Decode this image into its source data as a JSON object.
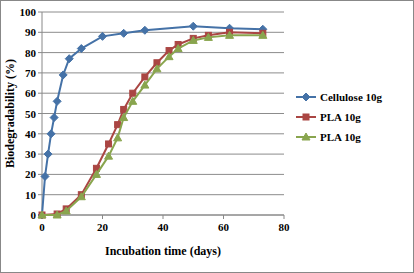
{
  "chart_data": {
    "type": "line",
    "x_label": "Incubation time (days)",
    "y_label": "Biodegradability (%)",
    "xlim": [
      0,
      80
    ],
    "xticks": [
      0,
      20,
      40,
      60,
      80
    ],
    "ylim": [
      0,
      100
    ],
    "yticks": [
      0,
      10,
      20,
      30,
      40,
      50,
      60,
      70,
      80,
      90,
      100
    ],
    "grid": true,
    "legend": "right",
    "series": [
      {
        "name": "Cellulose 10g",
        "color": "#4572a7",
        "marker": "diamond",
        "x": [
          0,
          1,
          2,
          3,
          4,
          5,
          7,
          9,
          13,
          20,
          27,
          34,
          50,
          62,
          73
        ],
        "values": [
          0,
          19,
          30,
          40,
          48,
          56,
          69,
          77,
          82,
          88,
          89.5,
          91,
          93,
          92,
          91.5
        ]
      },
      {
        "name": "PLA 10g",
        "color": "#aa4643",
        "marker": "square",
        "x": [
          0,
          5,
          8,
          13,
          18,
          22,
          25,
          27,
          30,
          34,
          38,
          42,
          45,
          50,
          55,
          62,
          73
        ],
        "values": [
          0,
          0.5,
          3,
          10,
          23,
          35,
          44.5,
          52,
          60,
          68,
          75,
          81,
          84,
          87,
          88.5,
          90,
          89.5
        ]
      },
      {
        "name": "PLA 10g",
        "color": "#89a54e",
        "marker": "triangle",
        "x": [
          0,
          5,
          8,
          13,
          18,
          22,
          25,
          27,
          30,
          34,
          38,
          42,
          45,
          50,
          55,
          62,
          73
        ],
        "values": [
          0,
          0,
          2,
          9,
          20,
          29,
          38,
          48,
          56,
          64,
          72,
          78,
          82,
          86,
          87.5,
          88.5,
          88.5
        ]
      }
    ]
  }
}
